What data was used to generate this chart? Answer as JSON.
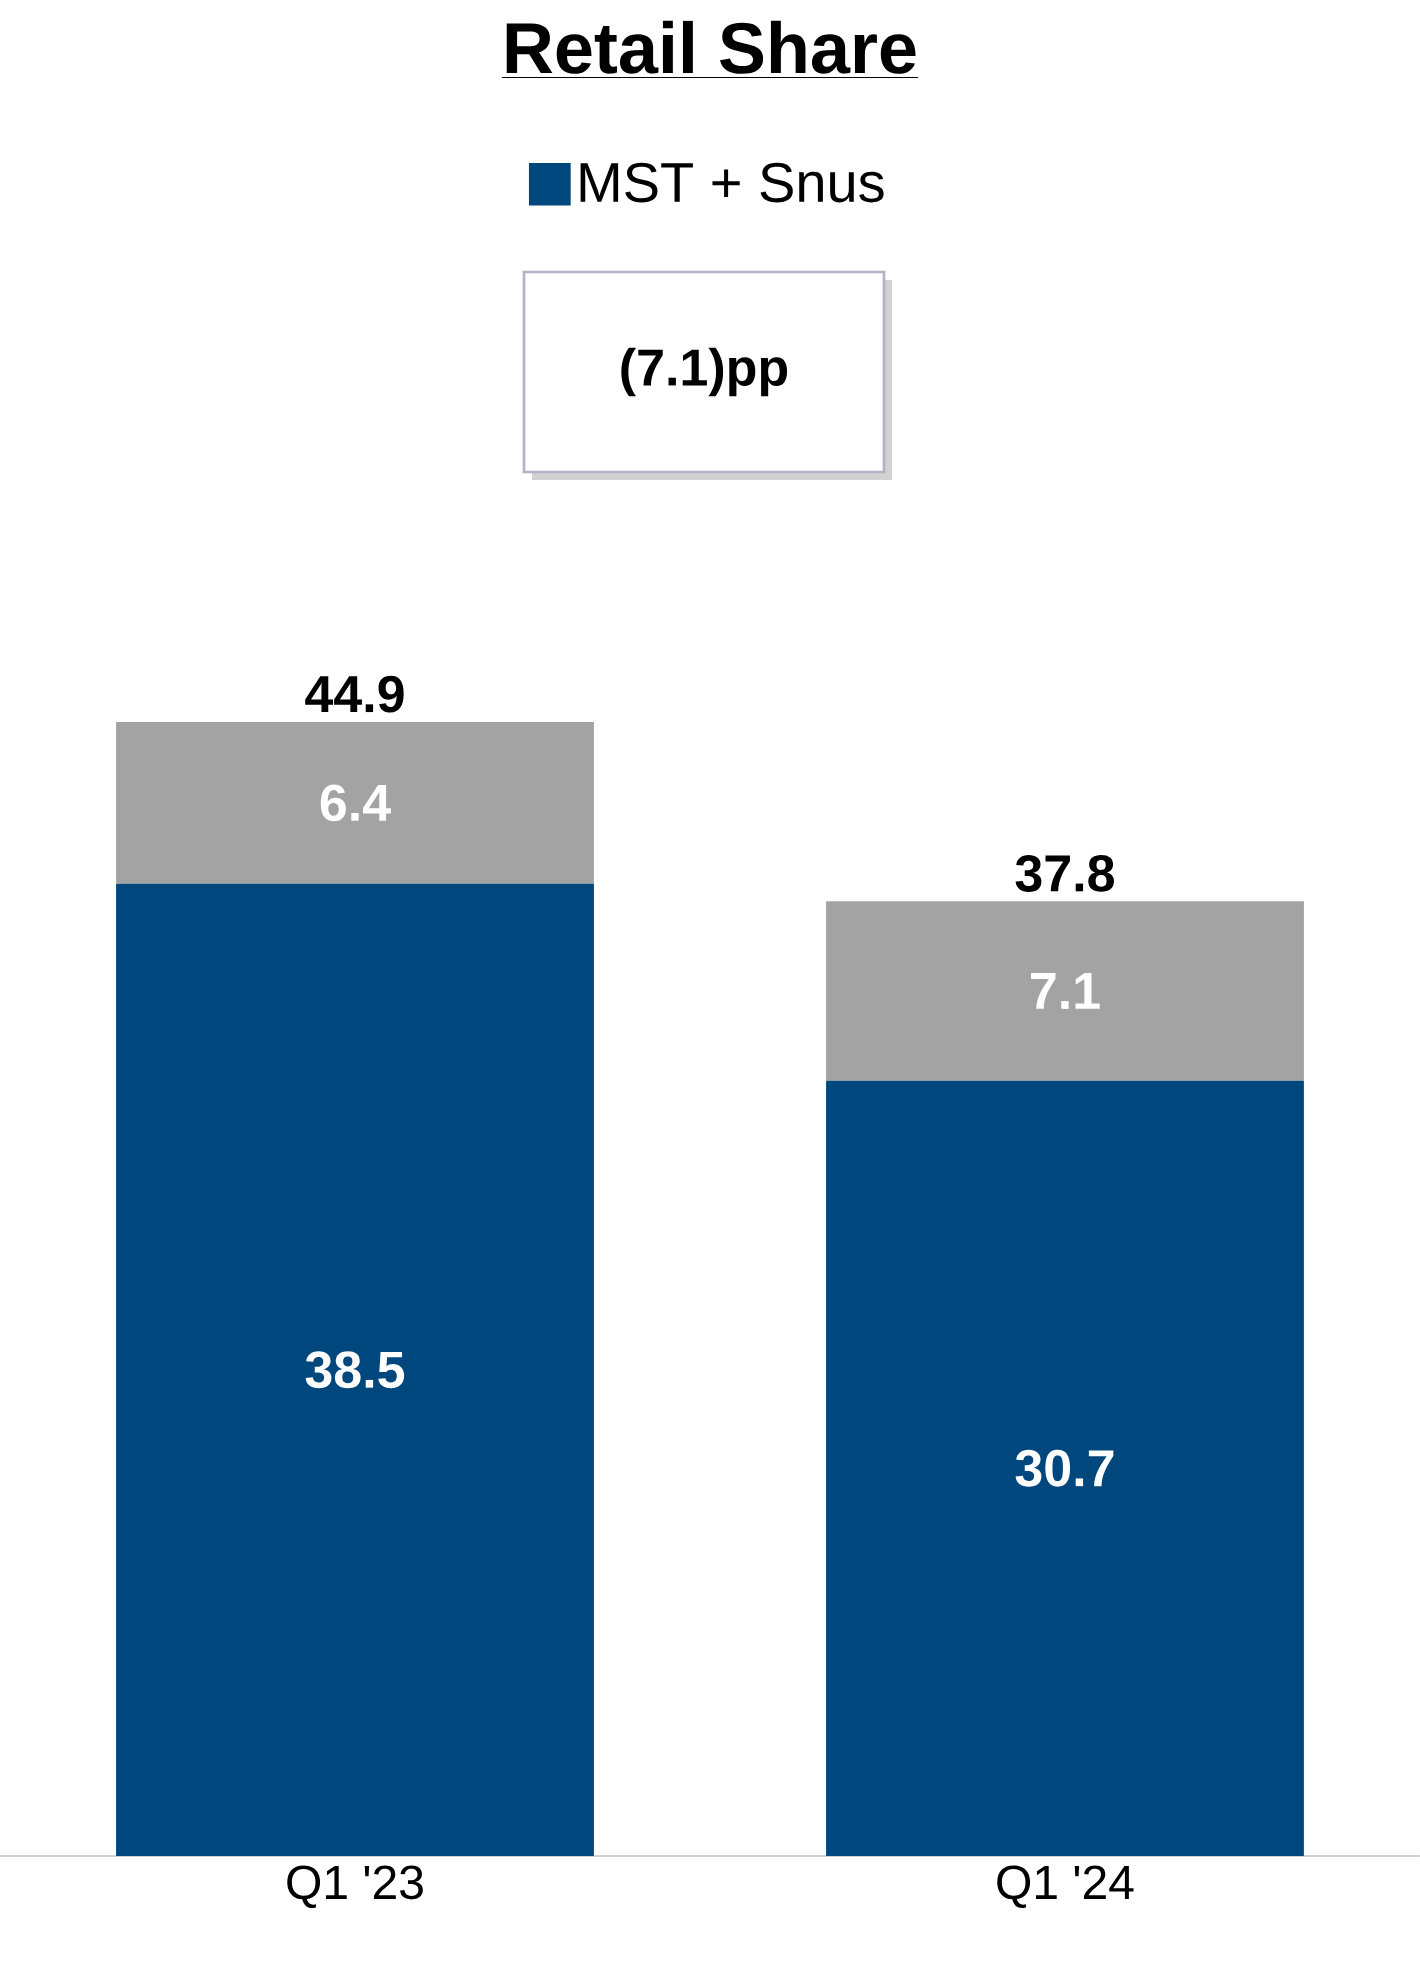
{
  "chart_data": {
    "type": "bar",
    "title": "Retail Share",
    "categories": [
      "Q1 '23",
      "Q1 '24"
    ],
    "stacked": true,
    "data_labels": true,
    "legend": "top",
    "series": [
      {
        "name": "MST + Snus",
        "color": "#00477e",
        "values": [
          38.5,
          30.7
        ]
      },
      {
        "color": "#a3a3a3",
        "values": [
          6.4,
          7.1
        ]
      }
    ],
    "totals": [
      "44.9",
      "37.8"
    ],
    "annotations": [
      "(7.1)pp"
    ]
  }
}
